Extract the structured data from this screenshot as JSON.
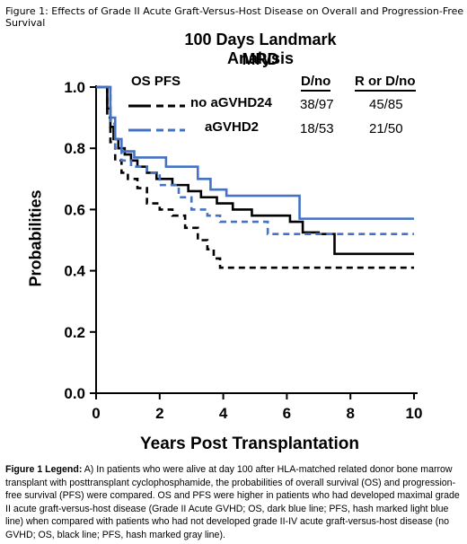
{
  "figure_caption": "Figure 1: Effects of Grade II Acute Graft-Versus-Host Disease on Overall and Progression-Free Survival",
  "chart_data": {
    "type": "line",
    "step": true,
    "title": "100 Days Landmark Analysis",
    "subtitle": "MRD",
    "xlabel": "Years Post Transplantation",
    "ylabel": "Probabilities",
    "xlim": [
      0,
      10
    ],
    "ylim": [
      0,
      1.0
    ],
    "x_ticks": [
      "0",
      "2",
      "4",
      "6",
      "8",
      "10"
    ],
    "y_ticks": [
      "0.0",
      "0.2",
      "0.4",
      "0.6",
      "0.8",
      "1.0"
    ],
    "grid": false,
    "legend": {
      "header": "OS PFS",
      "columns": [
        "D/no",
        "R or D/no"
      ],
      "rows": [
        {
          "label": "no aGVHD24",
          "d_no": "38/97",
          "r_or_d_no": "45/85",
          "color": "#000000"
        },
        {
          "label": "aGVHD2",
          "d_no": "18/53",
          "r_or_d_no": "21/50",
          "color": "#4472c4"
        }
      ]
    },
    "series": [
      {
        "group": "no aGVHD24",
        "curve": "OS",
        "color": "#000000",
        "dash": false,
        "points": [
          [
            0,
            1.0
          ],
          [
            0.3,
            1.0
          ],
          [
            0.35,
            0.93
          ],
          [
            0.45,
            0.87
          ],
          [
            0.55,
            0.83
          ],
          [
            0.7,
            0.8
          ],
          [
            0.9,
            0.78
          ],
          [
            1.1,
            0.76
          ],
          [
            1.3,
            0.74
          ],
          [
            1.6,
            0.72
          ],
          [
            1.9,
            0.7
          ],
          [
            2.4,
            0.68
          ],
          [
            2.9,
            0.66
          ],
          [
            3.3,
            0.64
          ],
          [
            3.8,
            0.62
          ],
          [
            4.3,
            0.6
          ],
          [
            4.9,
            0.58
          ],
          [
            6.1,
            0.56
          ],
          [
            6.5,
            0.525
          ],
          [
            7.0,
            0.52
          ],
          [
            7.5,
            0.455
          ],
          [
            10.0,
            0.455
          ]
        ]
      },
      {
        "group": "no aGVHD24",
        "curve": "PFS",
        "color": "#000000",
        "dash": true,
        "points": [
          [
            0,
            1.0
          ],
          [
            0.3,
            1.0
          ],
          [
            0.35,
            0.9
          ],
          [
            0.45,
            0.82
          ],
          [
            0.6,
            0.76
          ],
          [
            0.8,
            0.72
          ],
          [
            1.0,
            0.7
          ],
          [
            1.3,
            0.67
          ],
          [
            1.6,
            0.62
          ],
          [
            2.0,
            0.6
          ],
          [
            2.4,
            0.58
          ],
          [
            2.8,
            0.54
          ],
          [
            3.2,
            0.5
          ],
          [
            3.5,
            0.47
          ],
          [
            3.7,
            0.44
          ],
          [
            3.9,
            0.41
          ],
          [
            10.0,
            0.41
          ]
        ]
      },
      {
        "group": "aGVHD2",
        "curve": "OS",
        "color": "#4472c4",
        "dash": false,
        "points": [
          [
            0,
            1.0
          ],
          [
            0.35,
            1.0
          ],
          [
            0.45,
            0.9
          ],
          [
            0.6,
            0.83
          ],
          [
            0.8,
            0.79
          ],
          [
            1.2,
            0.77
          ],
          [
            2.2,
            0.74
          ],
          [
            3.2,
            0.7
          ],
          [
            3.6,
            0.665
          ],
          [
            4.1,
            0.645
          ],
          [
            6.4,
            0.57
          ],
          [
            10.0,
            0.57
          ]
        ]
      },
      {
        "group": "aGVHD2",
        "curve": "PFS",
        "color": "#4472c4",
        "dash": true,
        "points": [
          [
            0,
            1.0
          ],
          [
            0.35,
            1.0
          ],
          [
            0.45,
            0.88
          ],
          [
            0.6,
            0.8
          ],
          [
            0.8,
            0.76
          ],
          [
            1.1,
            0.74
          ],
          [
            1.6,
            0.72
          ],
          [
            2.0,
            0.68
          ],
          [
            2.6,
            0.64
          ],
          [
            3.0,
            0.6
          ],
          [
            3.5,
            0.58
          ],
          [
            3.9,
            0.56
          ],
          [
            5.4,
            0.52
          ],
          [
            10.0,
            0.52
          ]
        ]
      }
    ]
  },
  "legend_paragraph": {
    "bold": "Figure 1 Legend:",
    "text": " A) In patients who were alive at day 100 after HLA-matched related donor bone marrow transplant with posttransplant cyclophosphamide, the probabilities of overall survival (OS) and progression-free survival (PFS) were compared. OS and PFS were higher in patients who had developed maximal grade II acute graft-versus-host disease (Grade II Acute GVHD; OS, dark blue line; PFS, hash marked light blue line) when compared with patients who had not developed grade II-IV acute graft-versus-host disease (no GVHD; OS, black line; PFS, hash marked gray line)."
  }
}
